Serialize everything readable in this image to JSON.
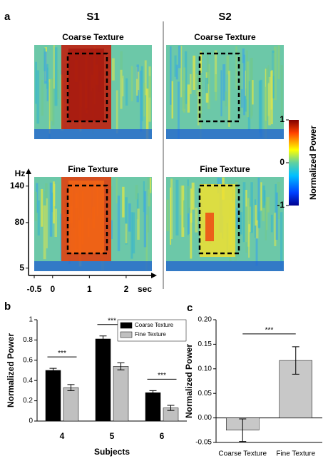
{
  "chart_data": [
    {
      "type": "heatmap",
      "panel_label": "a",
      "columns": [
        "S1",
        "S2"
      ],
      "rows": [
        "Coarse Texture",
        "Fine Texture"
      ],
      "ylabel": "Hz",
      "xlabel": "sec",
      "xlim": [
        -0.5,
        2.7
      ],
      "xticks": [
        -0.5,
        0,
        1,
        2
      ],
      "ylim": [
        0,
        155
      ],
      "yticks": [
        5,
        80,
        140
      ],
      "colorbar": {
        "label": "Normalized Power",
        "lim": [
          -1,
          1
        ],
        "ticks": [
          -1,
          0,
          1
        ]
      }
    },
    {
      "type": "bar",
      "panel_label": "b",
      "categories": [
        "4",
        "5",
        "6"
      ],
      "xlabel": "Subjects",
      "ylabel": "Normalized Power",
      "series": [
        {
          "name": "Coarse Texture",
          "color": "#000000",
          "values": [
            0.5,
            0.81,
            0.28
          ],
          "errors": [
            0.02,
            0.03,
            0.02
          ]
        },
        {
          "name": "Fine Texture",
          "color": "#c0c0c0",
          "values": [
            0.33,
            0.54,
            0.13
          ],
          "errors": [
            0.03,
            0.035,
            0.025
          ]
        }
      ],
      "ylim": [
        0,
        1
      ],
      "yticks": [
        0,
        0.2,
        0.4,
        0.6,
        0.8,
        1
      ],
      "annotations": [
        "***",
        "***",
        "***"
      ]
    },
    {
      "type": "bar",
      "panel_label": "c",
      "categories": [
        "Coarse Texture",
        "Fine Texture"
      ],
      "ylabel": "Normalized Power",
      "values": [
        -0.025,
        0.117
      ],
      "errors": [
        0.023,
        0.028
      ],
      "color": "#c8c8c8",
      "ylim": [
        -0.05,
        0.2
      ],
      "yticks": [
        -0.05,
        {
          "value": 0,
          "label": "0.00"
        },
        0.05,
        {
          "value": 0.1,
          "label": "0.10"
        },
        0.15,
        {
          "value": 0.2,
          "label": "0.20"
        }
      ],
      "annotations": [
        "***"
      ]
    }
  ]
}
